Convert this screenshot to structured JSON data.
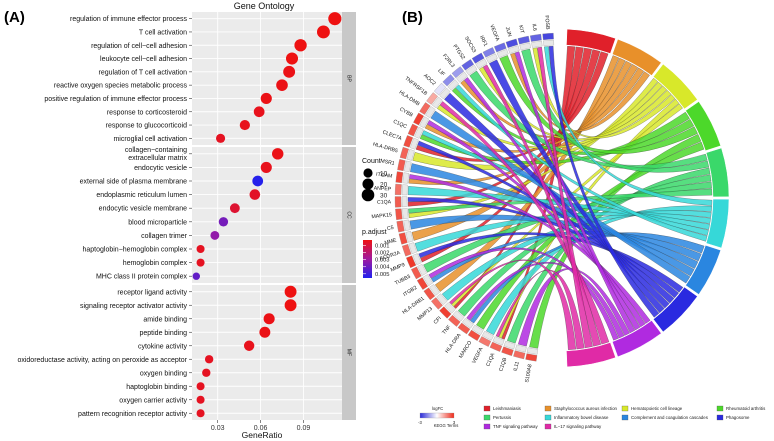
{
  "panels": {
    "a_label": "(A)",
    "b_label": "(B)"
  },
  "chart_data": [
    {
      "type": "scatter",
      "subtype": "dot-plot",
      "title": "Gene Ontology",
      "xlabel": "GeneRatio",
      "ylabel": "",
      "xlim": [
        0.012,
        0.117
      ],
      "xticks": [
        0.03,
        0.06,
        0.09
      ],
      "xtick_labels": [
        "0.03",
        "0.06",
        "0.09"
      ],
      "groups": [
        {
          "name": "BP",
          "terms": [
            {
              "label": "regulation of immune effector process",
              "ratio": 0.112,
              "count": 34,
              "padj": 0.0002
            },
            {
              "label": "T cell activation",
              "ratio": 0.104,
              "count": 32,
              "padj": 0.0002
            },
            {
              "label": "regulation of cell−cell adhesion",
              "ratio": 0.088,
              "count": 28,
              "padj": 0.0002
            },
            {
              "label": "leukocyte cell−cell adhesion",
              "ratio": 0.082,
              "count": 26,
              "padj": 0.0002
            },
            {
              "label": "regulation of T cell activation",
              "ratio": 0.08,
              "count": 25,
              "padj": 0.0003
            },
            {
              "label": "reactive oxygen species metabolic process",
              "ratio": 0.075,
              "count": 23,
              "padj": 0.0003
            },
            {
              "label": "positive regulation of immune effector process",
              "ratio": 0.064,
              "count": 20,
              "padj": 0.0003
            },
            {
              "label": "response to corticosteroid",
              "ratio": 0.059,
              "count": 18,
              "padj": 0.0004
            },
            {
              "label": "response to glucocorticoid",
              "ratio": 0.049,
              "count": 15,
              "padj": 0.0004
            },
            {
              "label": "microglial cell activation",
              "ratio": 0.032,
              "count": 10,
              "padj": 0.0005
            }
          ]
        },
        {
          "name": "CC",
          "terms": [
            {
              "label": "collagen−containing\nextracellular matrix",
              "ratio": 0.072,
              "count": 22,
              "padj": 0.0003
            },
            {
              "label": "endocytic vesicle",
              "ratio": 0.064,
              "count": 20,
              "padj": 0.0004
            },
            {
              "label": "external side of plasma membrane",
              "ratio": 0.058,
              "count": 18,
              "padj": 0.0055
            },
            {
              "label": "endoplasmic reticulum lumen",
              "ratio": 0.056,
              "count": 17,
              "padj": 0.0006
            },
            {
              "label": "endocytic vesicle membrane",
              "ratio": 0.042,
              "count": 13,
              "padj": 0.0008
            },
            {
              "label": "blood microparticle",
              "ratio": 0.034,
              "count": 11,
              "padj": 0.0038
            },
            {
              "label": "collagen trimer",
              "ratio": 0.028,
              "count": 9,
              "padj": 0.0032
            },
            {
              "label": "haptoglobin−hemoglobin complex",
              "ratio": 0.018,
              "count": 6,
              "padj": 0.0005
            },
            {
              "label": "hemoglobin complex",
              "ratio": 0.018,
              "count": 6,
              "padj": 0.0005
            },
            {
              "label": "MHC class II protein complex",
              "ratio": 0.015,
              "count": 4,
              "padj": 0.0042
            }
          ]
        },
        {
          "name": "MF",
          "terms": [
            {
              "label": "receptor ligand activity",
              "ratio": 0.081,
              "count": 25,
              "padj": 0.0002
            },
            {
              "label": "signaling receptor activator activity",
              "ratio": 0.081,
              "count": 25,
              "padj": 0.0002
            },
            {
              "label": "amide binding",
              "ratio": 0.066,
              "count": 20,
              "padj": 0.0003
            },
            {
              "label": "peptide binding",
              "ratio": 0.063,
              "count": 19,
              "padj": 0.0003
            },
            {
              "label": "cytokine activity",
              "ratio": 0.052,
              "count": 16,
              "padj": 0.0004
            },
            {
              "label": "oxidoreductase activity, acting on peroxide as acceptor",
              "ratio": 0.024,
              "count": 7,
              "padj": 0.0005
            },
            {
              "label": "oxygen binding",
              "ratio": 0.022,
              "count": 7,
              "padj": 0.0005
            },
            {
              "label": "haptoglobin binding",
              "ratio": 0.018,
              "count": 6,
              "padj": 0.0005
            },
            {
              "label": "oxygen carrier activity",
              "ratio": 0.018,
              "count": 6,
              "padj": 0.0005
            },
            {
              "label": "pattern recognition receptor activity",
              "ratio": 0.018,
              "count": 6,
              "padj": 0.0005
            }
          ]
        }
      ],
      "legend": {
        "count_title": "Count",
        "count_values": [
          10,
          20,
          30
        ],
        "count_labels": [
          "10",
          "20",
          "30"
        ],
        "padj_title": "p.adjust",
        "padj_ticks": [
          0.001,
          0.002,
          0.003,
          0.004,
          0.005
        ],
        "padj_labels": [
          "0.001",
          "0.002",
          "0.003",
          "0.004",
          "0.005"
        ],
        "padj_range": [
          0.0002,
          0.0056
        ],
        "color_low": "#ee1111",
        "color_mid": "#a01aa0",
        "color_high": "#2020ee"
      },
      "panel_bg": "#ebebeb",
      "strip_bg": "#c8c8c8"
    },
    {
      "type": "chord",
      "genes": [
        "S100A8",
        "IL11",
        "C1QB",
        "C1QA",
        "VEGFA",
        "MARCO",
        "HLA-DRA",
        "TNF",
        "CFI",
        "MMP13",
        "HLA-DRB1",
        "ITGB2",
        "TUBB3",
        "MMP9",
        "FCGR2A",
        "MME",
        "C5",
        "MAPK15",
        "C1QA",
        "ANPEP",
        "ITGAM",
        "MSR1",
        "HLA-DRB5",
        "CLEC7A",
        "C1QC",
        "CYBB",
        "HLA-DMB",
        "TNFRSF1B",
        "AOC2",
        "LIF",
        "F2RL3",
        "PTGS2",
        "SOCS3",
        "IRF1",
        "VEGFA",
        "JUN",
        "KIT",
        "IL6",
        "FOSB"
      ],
      "gene_logfc": [
        2.6,
        2.1,
        2.4,
        2.2,
        1.9,
        2.5,
        2.3,
        2.2,
        2.7,
        2.0,
        2.4,
        2.6,
        2.3,
        2.8,
        2.1,
        2.5,
        2.2,
        2.4,
        2.3,
        2.0,
        2.6,
        2.3,
        2.2,
        2.5,
        2.4,
        2.7,
        2.1,
        1.2,
        -0.4,
        -1.6,
        -1.4,
        -2.2,
        -2.4,
        -1.8,
        -2.1,
        -2.5,
        -2.3,
        -2.2,
        -2.6
      ],
      "terms": [
        {
          "name": "Leishmaniasis",
          "color": "#e0202a"
        },
        {
          "name": "Staphylococcus aureus infection",
          "color": "#e8902a"
        },
        {
          "name": "Hematopoietic cell lineage",
          "color": "#d8e82a"
        },
        {
          "name": "Rheumatoid arthritis",
          "color": "#4cd82a"
        },
        {
          "name": "Pertussis",
          "color": "#3ad86a"
        },
        {
          "name": "Inflammatory bowel disease",
          "color": "#36d8d8"
        },
        {
          "name": "Complement and coagulation cascades",
          "color": "#2a86e0"
        },
        {
          "name": "Phagosome",
          "color": "#2a2ae0"
        },
        {
          "name": "TNF signaling pathway",
          "color": "#b02ae0"
        },
        {
          "name": "IL−17 signaling pathway",
          "color": "#e02aa6"
        }
      ],
      "legend": {
        "logfc_title": "logFC",
        "logfc_min_label": "-3",
        "logfc_max_label": "3",
        "kegg_title": "KEGG Terms"
      }
    }
  ]
}
